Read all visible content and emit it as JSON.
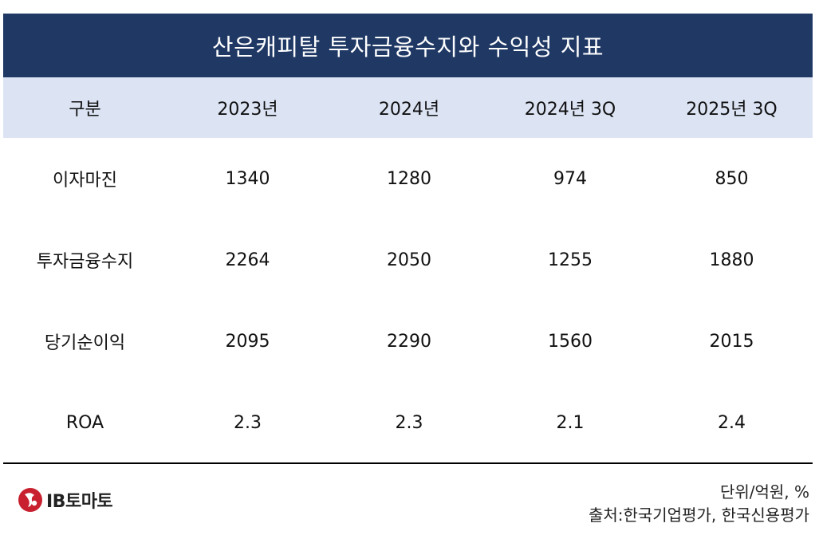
{
  "chart_data": {
    "type": "table",
    "title": "산은캐피탈 투자금융수지와 수익성 지표",
    "columns": [
      "구분",
      "2023년",
      "2024년",
      "2024년 3Q",
      "2025년 3Q"
    ],
    "rows": [
      {
        "label": "이자마진",
        "values": [
          "1340",
          "1280",
          "974",
          "850"
        ]
      },
      {
        "label": "투자금융수지",
        "values": [
          "2264",
          "2050",
          "1255",
          "1880"
        ]
      },
      {
        "label": "당기순이익",
        "values": [
          "2095",
          "2290",
          "1560",
          "2015"
        ]
      },
      {
        "label": "ROA",
        "values": [
          "2.3",
          "2.3",
          "2.1",
          "2.4"
        ]
      }
    ]
  },
  "footer": {
    "unit": "단위/억원, %",
    "source": "출처:한국기업평가, 한국신용평가",
    "logo_text": "IB토마토"
  },
  "colors": {
    "title_bg": "#1f3864",
    "header_bg": "#dce4f4",
    "logo_red": "#c8202f"
  }
}
